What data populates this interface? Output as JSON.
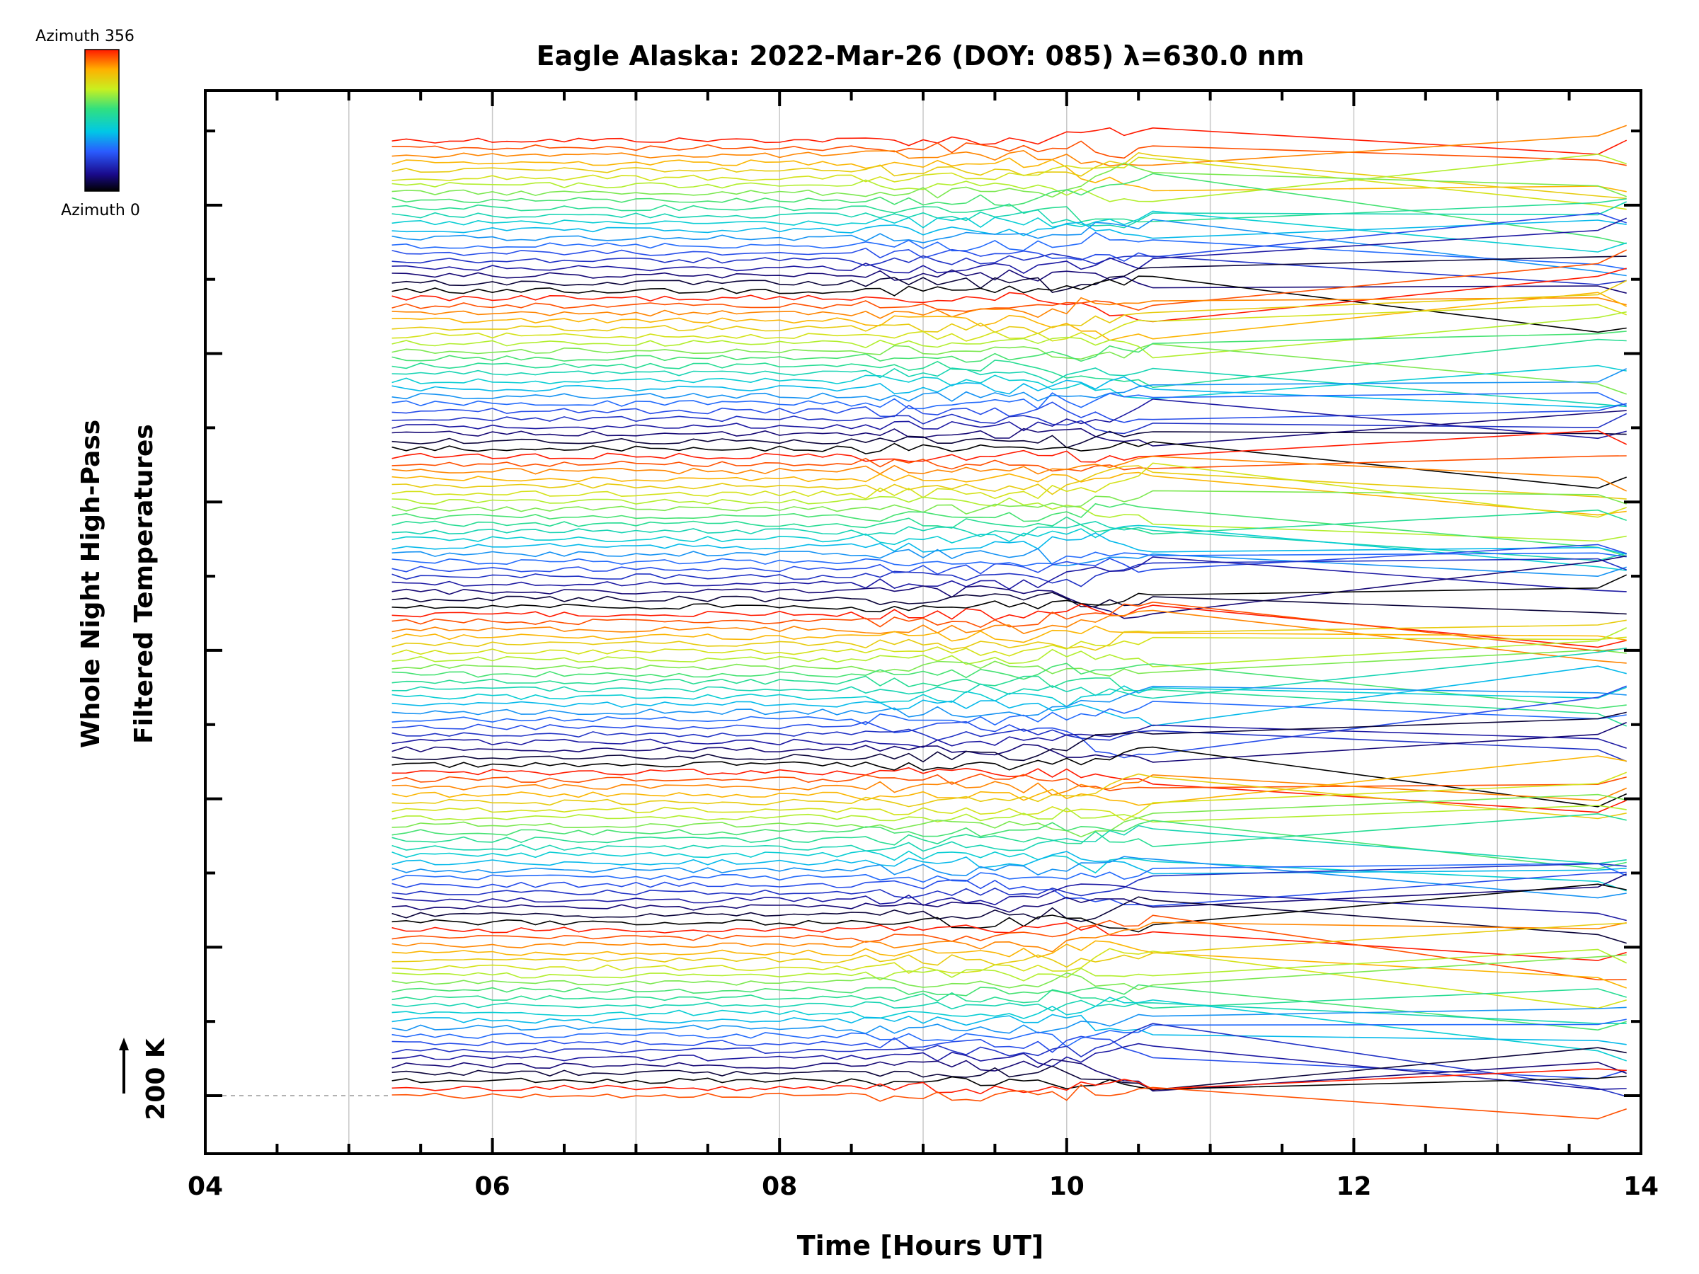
{
  "chart_data": {
    "type": "line",
    "title": "Eagle Alaska: 2022-Mar-26 (DOY: 085) λ=630.0 nm",
    "xlabel": "Time [Hours UT]",
    "ylabel_line1": "Whole Night High-Pass",
    "ylabel_line2": "Filtered Temperatures",
    "scale_label": "200 K",
    "xlim": [
      4,
      14
    ],
    "x_ticks": [
      "04",
      "06",
      "08",
      "10",
      "12",
      "14"
    ],
    "x_start": 5.3,
    "x_dense_end": 10.6,
    "x_last": [
      13.7,
      13.9
    ],
    "n_traces": 128,
    "azimuth_range": [
      0,
      356
    ],
    "colorbar": {
      "top_label": "Azimuth  356",
      "bottom_label": "Azimuth  0"
    },
    "grid": true,
    "description_note": ""
  },
  "colors": {
    "frame": "#000000",
    "grid": "#c8c8c8",
    "baseline": "#999999"
  }
}
